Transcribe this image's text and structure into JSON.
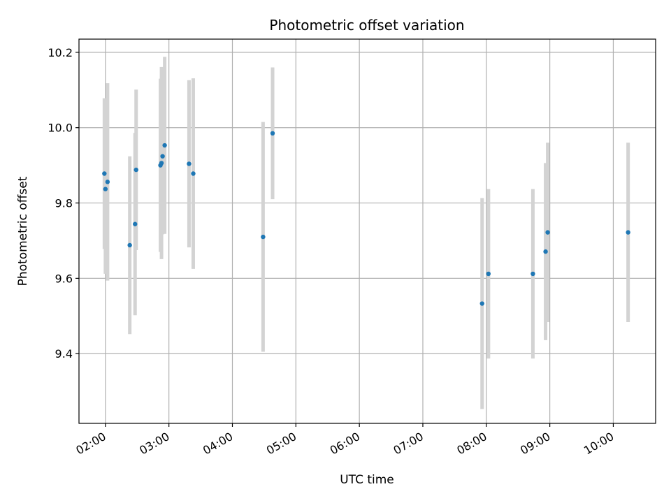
{
  "chart_data": {
    "type": "scatter",
    "title": "Photometric offset variation",
    "xlabel": "UTC time",
    "ylabel": "Photometric offset",
    "xlim": [
      "01:35",
      "10:40"
    ],
    "ylim": [
      9.215,
      10.235
    ],
    "xticks": [
      "02:00",
      "03:00",
      "04:00",
      "05:00",
      "06:00",
      "07:00",
      "08:00",
      "09:00",
      "10:00"
    ],
    "yticks": [
      9.4,
      9.6,
      9.8,
      10.0,
      10.2
    ],
    "ytick_labels": [
      "9.4",
      "9.6",
      "9.8",
      "10.0",
      "10.2"
    ],
    "grid": true,
    "point_color": "#1f77b4",
    "errorbar_color": "#d3d3d3",
    "points": [
      {
        "x": "01:59",
        "y": 9.878,
        "yerr": 0.2
      },
      {
        "x": "02:00",
        "y": 9.837,
        "yerr": 0.225
      },
      {
        "x": "02:02",
        "y": 9.856,
        "yerr": 0.262
      },
      {
        "x": "02:23",
        "y": 9.688,
        "yerr": 0.236
      },
      {
        "x": "02:28",
        "y": 9.744,
        "yerr": 0.242
      },
      {
        "x": "02:29",
        "y": 9.888,
        "yerr": 0.213
      },
      {
        "x": "02:52",
        "y": 9.9,
        "yerr": 0.23
      },
      {
        "x": "02:53",
        "y": 9.906,
        "yerr": 0.255
      },
      {
        "x": "02:54",
        "y": 9.924,
        "yerr": 0.207
      },
      {
        "x": "02:56",
        "y": 9.953,
        "yerr": 0.235
      },
      {
        "x": "03:19",
        "y": 9.904,
        "yerr": 0.222
      },
      {
        "x": "03:23",
        "y": 9.878,
        "yerr": 0.253
      },
      {
        "x": "04:29",
        "y": 9.71,
        "yerr": 0.305
      },
      {
        "x": "04:38",
        "y": 9.985,
        "yerr": 0.175
      },
      {
        "x": "07:56",
        "y": 9.533,
        "yerr": 0.28
      },
      {
        "x": "08:02",
        "y": 9.612,
        "yerr": 0.225
      },
      {
        "x": "08:44",
        "y": 9.612,
        "yerr": 0.225
      },
      {
        "x": "08:56",
        "y": 9.671,
        "yerr": 0.235
      },
      {
        "x": "08:58",
        "y": 9.722,
        "yerr": 0.238
      },
      {
        "x": "10:14",
        "y": 9.722,
        "yerr": 0.238
      }
    ]
  }
}
